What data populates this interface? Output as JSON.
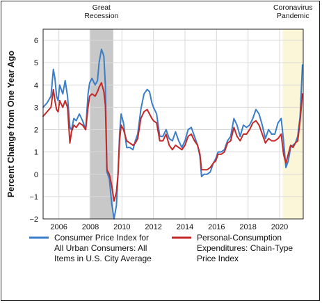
{
  "chart_data": {
    "type": "line",
    "ylabel": "Percent Change from One Year Ago",
    "xlabel": "",
    "xlim": [
      2005.0,
      2021.5
    ],
    "ylim": [
      -2,
      6.5
    ],
    "x_ticks": [
      "2006",
      "2008",
      "2010",
      "2012",
      "2014",
      "2016",
      "2018",
      "2020"
    ],
    "y_ticks": [
      "−2",
      "−1",
      "0",
      "1",
      "2",
      "3",
      "4",
      "5",
      "6"
    ],
    "grid": true,
    "legend_position": "bottom",
    "shaded_regions": [
      {
        "label_lines": [
          "Great",
          "Recession"
        ],
        "start": 2007.95,
        "end": 2009.45,
        "color": "#c8c8c8"
      },
      {
        "label_lines": [
          "Coronavirus",
          "Pandemic"
        ],
        "start": 2020.2,
        "end": 2021.5,
        "color": "#fbf6d8"
      }
    ],
    "series": [
      {
        "name": "Consumer Price Index for All Urban Consumers: All Items in U.S. City Average",
        "legend_lines": [
          "Consumer Price Index for",
          "All Urban Consumers: All",
          "Items in U.S. City Average"
        ],
        "color": "#3a7dc9",
        "x": [
          2005.0,
          2005.25,
          2005.5,
          2005.65,
          2005.75,
          2005.85,
          2005.95,
          2006.05,
          2006.25,
          2006.4,
          2006.55,
          2006.7,
          2006.8,
          2006.95,
          2007.1,
          2007.3,
          2007.5,
          2007.7,
          2007.85,
          2007.95,
          2008.1,
          2008.3,
          2008.45,
          2008.55,
          2008.7,
          2008.85,
          2008.95,
          2009.05,
          2009.2,
          2009.35,
          2009.5,
          2009.65,
          2009.75,
          2009.85,
          2009.95,
          2010.1,
          2010.3,
          2010.5,
          2010.7,
          2010.85,
          2011.0,
          2011.2,
          2011.4,
          2011.6,
          2011.75,
          2011.9,
          2012.0,
          2012.2,
          2012.4,
          2012.6,
          2012.8,
          2013.0,
          2013.2,
          2013.4,
          2013.6,
          2013.8,
          2014.0,
          2014.2,
          2014.4,
          2014.6,
          2014.8,
          2014.95,
          2015.05,
          2015.2,
          2015.4,
          2015.6,
          2015.8,
          2015.95,
          2016.1,
          2016.3,
          2016.5,
          2016.7,
          2016.9,
          2017.1,
          2017.3,
          2017.5,
          2017.7,
          2017.9,
          2018.1,
          2018.3,
          2018.5,
          2018.7,
          2018.9,
          2019.1,
          2019.3,
          2019.5,
          2019.7,
          2019.9,
          2020.1,
          2020.25,
          2020.4,
          2020.55,
          2020.7,
          2020.85,
          2021.0,
          2021.15,
          2021.3,
          2021.45
        ],
        "y": [
          3.0,
          3.2,
          3.5,
          4.7,
          4.3,
          3.5,
          3.3,
          4.0,
          3.6,
          4.2,
          3.5,
          2.1,
          2.0,
          2.5,
          2.4,
          2.7,
          2.4,
          2.0,
          3.6,
          4.1,
          4.3,
          4.0,
          4.2,
          5.0,
          5.6,
          5.3,
          4.0,
          0.1,
          -0.2,
          -1.3,
          -2.0,
          -1.4,
          0.0,
          1.8,
          2.7,
          2.3,
          1.2,
          1.2,
          1.1,
          1.5,
          1.8,
          2.9,
          3.6,
          3.8,
          3.7,
          3.2,
          3.0,
          2.7,
          1.7,
          1.7,
          2.0,
          1.6,
          1.5,
          1.9,
          1.5,
          1.2,
          1.5,
          2.0,
          2.1,
          1.7,
          1.3,
          0.8,
          -0.1,
          0.0,
          0.0,
          0.1,
          0.5,
          0.7,
          1.0,
          1.0,
          1.1,
          1.5,
          1.7,
          2.5,
          2.2,
          1.7,
          2.2,
          2.1,
          2.2,
          2.5,
          2.9,
          2.7,
          2.2,
          1.6,
          2.0,
          1.8,
          1.8,
          2.3,
          2.5,
          1.5,
          0.3,
          0.6,
          1.2,
          1.3,
          1.4,
          1.7,
          2.6,
          4.9
        ]
      },
      {
        "name": "Personal-Consumption Expenditures: Chain-Type Price Index",
        "legend_lines": [
          "Personal-Consumption",
          "Expenditures: Chain-Type",
          "Price Index"
        ],
        "color": "#c62828",
        "x": [
          2005.0,
          2005.25,
          2005.5,
          2005.65,
          2005.75,
          2005.85,
          2005.95,
          2006.05,
          2006.25,
          2006.4,
          2006.55,
          2006.7,
          2006.8,
          2006.95,
          2007.1,
          2007.3,
          2007.5,
          2007.7,
          2007.85,
          2007.95,
          2008.1,
          2008.3,
          2008.45,
          2008.55,
          2008.7,
          2008.85,
          2008.95,
          2009.05,
          2009.2,
          2009.35,
          2009.5,
          2009.65,
          2009.75,
          2009.85,
          2009.95,
          2010.1,
          2010.3,
          2010.5,
          2010.7,
          2010.85,
          2011.0,
          2011.2,
          2011.4,
          2011.6,
          2011.75,
          2011.9,
          2012.0,
          2012.2,
          2012.4,
          2012.6,
          2012.8,
          2013.0,
          2013.2,
          2013.4,
          2013.6,
          2013.8,
          2014.0,
          2014.2,
          2014.4,
          2014.6,
          2014.8,
          2014.95,
          2015.05,
          2015.2,
          2015.4,
          2015.6,
          2015.8,
          2015.95,
          2016.1,
          2016.3,
          2016.5,
          2016.7,
          2016.9,
          2017.1,
          2017.3,
          2017.5,
          2017.7,
          2017.9,
          2018.1,
          2018.3,
          2018.5,
          2018.7,
          2018.9,
          2019.1,
          2019.3,
          2019.5,
          2019.7,
          2019.9,
          2020.1,
          2020.25,
          2020.4,
          2020.55,
          2020.7,
          2020.85,
          2021.0,
          2021.15,
          2021.3,
          2021.45
        ],
        "y": [
          2.6,
          2.8,
          3.0,
          3.8,
          3.3,
          2.9,
          2.8,
          3.3,
          3.0,
          3.3,
          3.0,
          1.4,
          1.9,
          2.2,
          2.1,
          2.3,
          2.2,
          2.0,
          3.0,
          3.5,
          3.6,
          3.5,
          3.7,
          3.9,
          4.1,
          3.7,
          3.1,
          0.2,
          0.0,
          -0.5,
          -1.2,
          -0.8,
          0.0,
          1.5,
          2.2,
          2.0,
          1.5,
          1.4,
          1.3,
          1.4,
          1.6,
          2.5,
          2.8,
          2.9,
          2.7,
          2.5,
          2.4,
          2.3,
          1.5,
          1.5,
          1.8,
          1.3,
          1.1,
          1.3,
          1.2,
          1.1,
          1.3,
          1.7,
          1.8,
          1.5,
          1.3,
          0.9,
          0.2,
          0.2,
          0.2,
          0.3,
          0.5,
          0.6,
          0.9,
          0.9,
          1.0,
          1.4,
          1.5,
          2.1,
          1.7,
          1.5,
          1.8,
          1.8,
          2.0,
          2.3,
          2.4,
          2.2,
          1.8,
          1.4,
          1.6,
          1.5,
          1.5,
          1.6,
          1.8,
          0.9,
          0.5,
          0.9,
          1.3,
          1.2,
          1.4,
          1.5,
          2.4,
          3.6
        ]
      }
    ]
  }
}
